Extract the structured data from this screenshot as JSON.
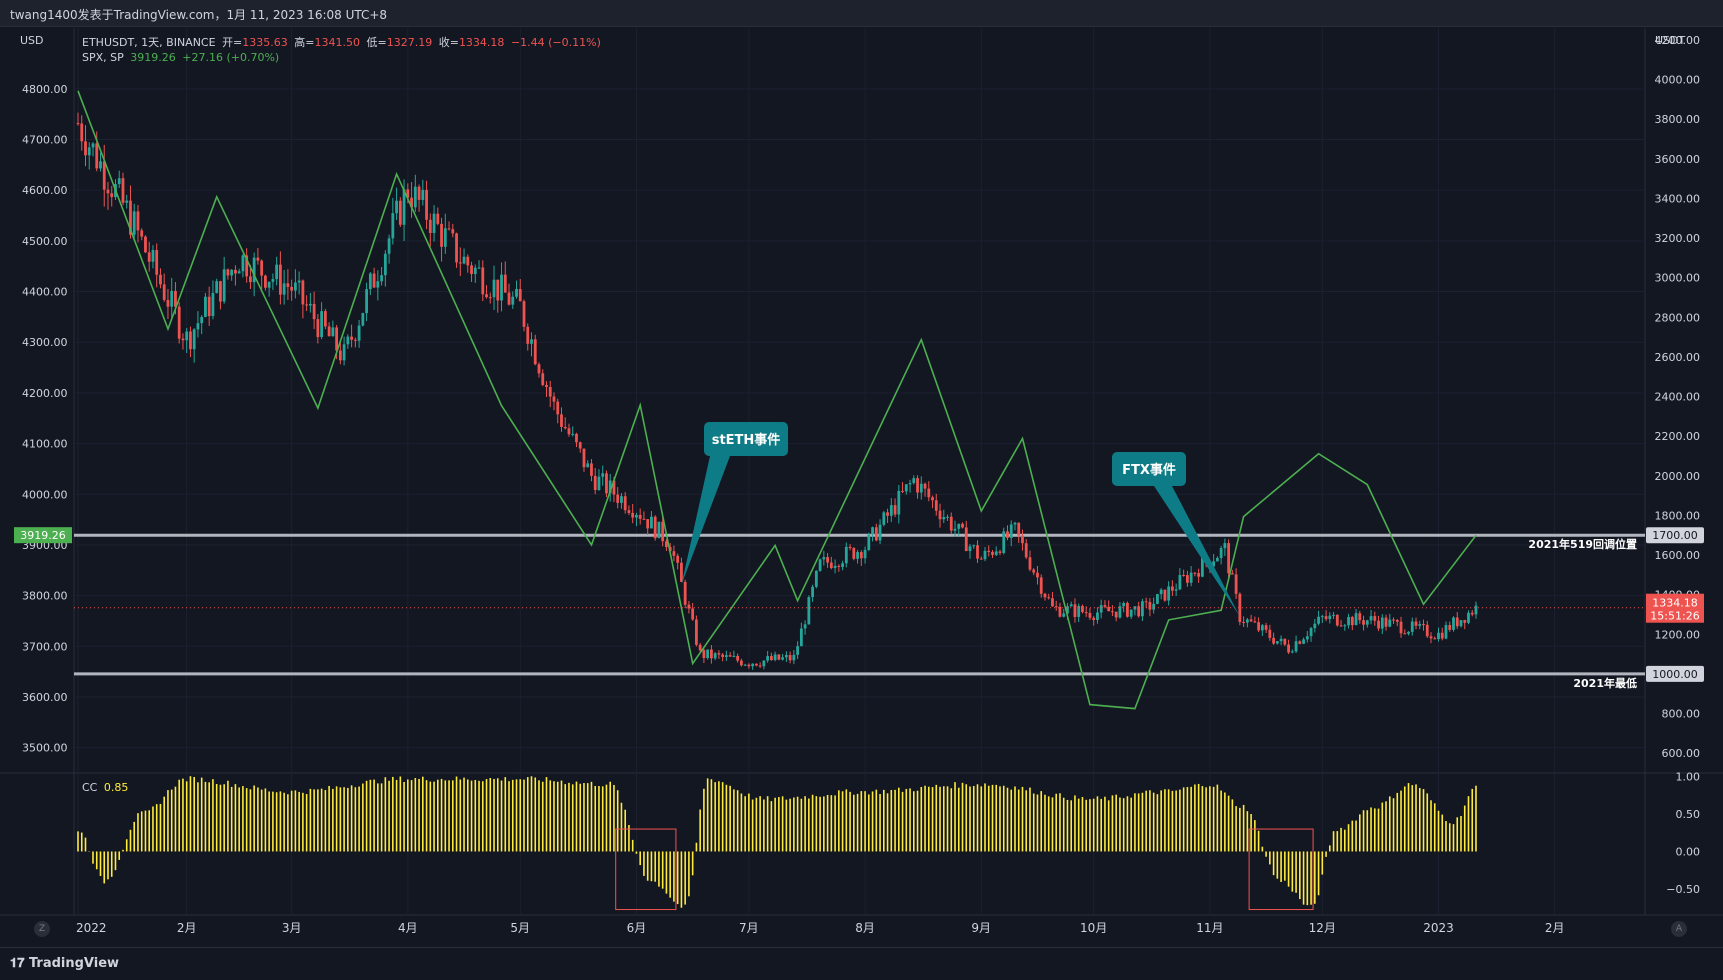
{
  "header": {
    "title": "twang1400发表于TradingView.com，1月 11, 2023 16:08 UTC+8"
  },
  "legend": {
    "main_symbol": "ETHUSDT, 1天, BINANCE",
    "open_label": "开=",
    "open": "1335.63",
    "high_label": "高=",
    "high": "1341.50",
    "low_label": "低=",
    "low": "1327.19",
    "close_label": "收=",
    "close": "1334.18",
    "change": "−1.44 (−0.11%)",
    "spx_symbol": "SPX, SP",
    "spx_value": "3919.26",
    "spx_change": "+27.16 (+0.70%)",
    "cc_label": "CC",
    "cc_value": "0.85"
  },
  "axes": {
    "left_unit": "USD",
    "right_unit": "USDT",
    "left_ticks": [
      "4800.00",
      "4700.00",
      "4600.00",
      "4500.00",
      "4400.00",
      "4300.00",
      "4200.00",
      "4100.00",
      "4000.00",
      "3900.00",
      "3800.00",
      "3700.00",
      "3600.00",
      "3500.00"
    ],
    "right_ticks": [
      "4200.00",
      "4000.00",
      "3800.00",
      "3600.00",
      "3400.00",
      "3200.00",
      "3000.00",
      "2800.00",
      "2600.00",
      "2400.00",
      "2200.00",
      "2000.00",
      "1800.00",
      "1600.00",
      "1400.00",
      "1200.00",
      "1000.00",
      "800.00",
      "600.00"
    ],
    "cc_ticks": [
      "1.00",
      "0.50",
      "0.00",
      "−0.50"
    ],
    "x_ticks": [
      "2022",
      "2月",
      "3月",
      "4月",
      "5月",
      "6月",
      "7月",
      "8月",
      "9月",
      "10月",
      "11月",
      "12月",
      "2023",
      "2月"
    ],
    "spx_tag": "3919.26",
    "eth_tag_price": "1334.18",
    "eth_tag_time": "15:51:26",
    "level_1700": "1700.00",
    "level_1000": "1000.00"
  },
  "annotations": {
    "steth": "stETH事件",
    "ftx": "FTX事件",
    "line_519": "2021年519回调位置",
    "line_low": "2021年最低"
  },
  "footer": {
    "brand": "TradingView"
  },
  "colors": {
    "background": "#131722",
    "up": "#26a69a",
    "down": "#ef5350",
    "spx_line": "#4caf50",
    "cc_bars": "#ffeb3b",
    "callout": "#0e7c86",
    "hline": "#b2b5be"
  },
  "chart_data": [
    {
      "type": "line",
      "title": "",
      "series": [
        {
          "name": "ETHUSDT",
          "x": [
            "2022-01-03",
            "2022-01-17",
            "2022-02-01",
            "2022-02-15",
            "2022-03-01",
            "2022-03-15",
            "2022-04-01",
            "2022-04-15",
            "2022-05-01",
            "2022-05-10",
            "2022-05-20",
            "2022-06-01",
            "2022-06-10",
            "2022-06-18",
            "2022-07-01",
            "2022-07-13",
            "2022-07-20",
            "2022-08-01",
            "2022-08-14",
            "2022-09-01",
            "2022-09-10",
            "2022-09-20",
            "2022-10-01",
            "2022-10-15",
            "2022-11-01",
            "2022-11-05",
            "2022-11-09",
            "2022-11-22",
            "2022-12-01",
            "2022-12-15",
            "2023-01-01",
            "2023-01-11"
          ],
          "close": [
            3780,
            3300,
            2690,
            3100,
            2950,
            2600,
            3450,
            3100,
            2850,
            2350,
            2000,
            1830,
            1660,
            1100,
            1060,
            1080,
            1550,
            1640,
            1980,
            1580,
            1720,
            1330,
            1310,
            1330,
            1580,
            1630,
            1290,
            1130,
            1280,
            1270,
            1200,
            1334
          ]
        },
        {
          "name": "SPX",
          "x": [
            "2022-01-03",
            "2022-01-27",
            "2022-02-09",
            "2022-03-08",
            "2022-03-29",
            "2022-04-26",
            "2022-05-20",
            "2022-06-02",
            "2022-06-16",
            "2022-07-08",
            "2022-07-14",
            "2022-08-16",
            "2022-09-01",
            "2022-09-12",
            "2022-09-30",
            "2022-10-12",
            "2022-10-21",
            "2022-11-04",
            "2022-11-10",
            "2022-11-30",
            "2022-12-13",
            "2022-12-28",
            "2023-01-11"
          ],
          "values": [
            4796,
            4326,
            4587,
            4170,
            4632,
            4175,
            3900,
            4176,
            3666,
            3899,
            3790,
            4305,
            3967,
            4110,
            3585,
            3577,
            3752,
            3771,
            3956,
            4080,
            4019,
            3783,
            3919
          ]
        }
      ],
      "ylim_left": [
        3450,
        4920
      ],
      "ylim_right": [
        500,
        4260
      ],
      "horizontal_levels": [
        {
          "value": 1700,
          "label": "2021年519回调位置"
        },
        {
          "value": 1000,
          "label": "2021年最低"
        }
      ],
      "annotations": [
        {
          "text": "stETH事件",
          "date": "2022-06-13"
        },
        {
          "text": "FTX事件",
          "date": "2022-11-09"
        }
      ],
      "grid": true
    },
    {
      "type": "bar",
      "title": "CC",
      "x": [
        "2022-01-03",
        "2022-01-10",
        "2022-01-20",
        "2022-02-01",
        "2022-03-01",
        "2022-04-01",
        "2022-05-01",
        "2022-05-25",
        "2022-06-05",
        "2022-06-14",
        "2022-06-20",
        "2022-07-05",
        "2022-08-01",
        "2022-09-01",
        "2022-10-01",
        "2022-10-20",
        "2022-11-01",
        "2022-11-10",
        "2022-11-20",
        "2022-11-28",
        "2022-12-05",
        "2022-12-15",
        "2022-12-25",
        "2023-01-05",
        "2023-01-11"
      ],
      "values": [
        0.3,
        -0.4,
        0.5,
        0.97,
        0.8,
        0.97,
        0.97,
        0.9,
        -0.4,
        -0.75,
        0.97,
        0.7,
        0.8,
        0.9,
        0.7,
        0.8,
        0.9,
        0.6,
        -0.4,
        -0.75,
        0.3,
        0.6,
        0.9,
        0.4,
        0.85
      ],
      "ylim": [
        -0.85,
        1.05
      ],
      "highlight_ranges": [
        [
          "2022-05-27",
          "2022-06-11"
        ],
        [
          "2022-11-12",
          "2022-11-28"
        ]
      ]
    }
  ]
}
